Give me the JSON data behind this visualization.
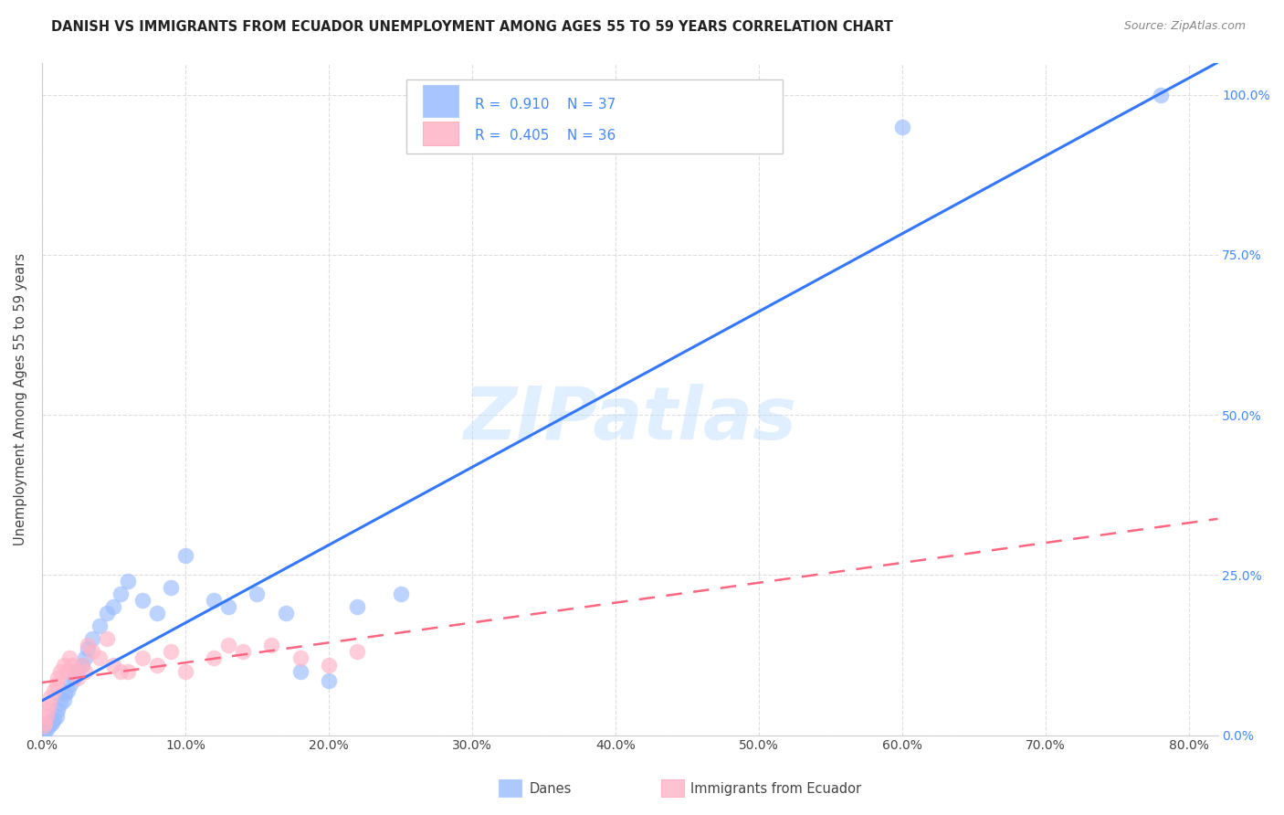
{
  "title": "DANISH VS IMMIGRANTS FROM ECUADOR UNEMPLOYMENT AMONG AGES 55 TO 59 YEARS CORRELATION CHART",
  "source": "Source: ZipAtlas.com",
  "ylabel": "Unemployment Among Ages 55 to 59 years",
  "watermark": "ZIPatlas",
  "legend_blue_R": "0.910",
  "legend_blue_N": "37",
  "legend_pink_R": "0.405",
  "legend_pink_N": "36",
  "blue_scatter_color": "#99BBFF",
  "pink_scatter_color": "#FFB3C6",
  "blue_line_color": "#3377FF",
  "pink_line_color": "#FF6680",
  "right_axis_color": "#4488FF",
  "grid_color": "#DDDDDD",
  "title_color": "#222222",
  "source_color": "#888888",
  "danes_x": [
    0.2,
    0.3,
    0.5,
    0.7,
    0.8,
    1.0,
    1.1,
    1.3,
    1.5,
    1.6,
    1.8,
    2.0,
    2.2,
    2.5,
    2.8,
    3.0,
    3.2,
    3.5,
    4.0,
    4.5,
    5.0,
    5.5,
    6.0,
    7.0,
    8.0,
    9.0,
    10.0,
    12.0,
    13.0,
    15.0,
    17.0,
    18.0,
    20.0,
    22.0,
    25.0,
    60.0,
    78.0
  ],
  "danes_y": [
    0.5,
    1.0,
    1.5,
    2.0,
    2.5,
    3.0,
    4.0,
    5.0,
    5.5,
    6.5,
    7.0,
    8.0,
    9.0,
    10.0,
    11.0,
    12.0,
    13.5,
    15.0,
    17.0,
    19.0,
    20.0,
    22.0,
    24.0,
    21.0,
    19.0,
    23.0,
    28.0,
    21.0,
    20.0,
    22.0,
    19.0,
    10.0,
    8.5,
    20.0,
    22.0,
    95.0,
    100.0
  ],
  "ecuador_x": [
    0.1,
    0.2,
    0.3,
    0.4,
    0.5,
    0.6,
    0.8,
    1.0,
    1.1,
    1.3,
    1.5,
    1.7,
    1.9,
    2.1,
    2.3,
    2.5,
    2.8,
    3.0,
    3.5,
    4.0,
    5.0,
    6.0,
    7.0,
    8.0,
    9.0,
    10.0,
    12.0,
    14.0,
    16.0,
    18.0,
    20.0,
    22.0,
    3.2,
    4.5,
    13.0,
    5.5
  ],
  "ecuador_y": [
    1.5,
    2.0,
    3.0,
    4.0,
    5.0,
    6.0,
    7.0,
    8.0,
    9.0,
    10.0,
    11.0,
    10.0,
    12.0,
    11.0,
    10.0,
    9.0,
    11.0,
    10.0,
    13.0,
    12.0,
    11.0,
    10.0,
    12.0,
    11.0,
    13.0,
    10.0,
    12.0,
    13.0,
    14.0,
    12.0,
    11.0,
    13.0,
    14.0,
    15.0,
    14.0,
    10.0
  ],
  "blue_line_x": [
    0.0,
    80.0
  ],
  "blue_line_y": [
    0.0,
    100.0
  ],
  "pink_line_x_start": 0.0,
  "pink_line_x_end": 80.0,
  "xlim": [
    0.0,
    82.0
  ],
  "ylim": [
    0.0,
    105.0
  ],
  "x_ticks": [
    0,
    10,
    20,
    30,
    40,
    50,
    60,
    70,
    80
  ],
  "y_ticks": [
    0,
    25,
    50,
    75,
    100
  ]
}
